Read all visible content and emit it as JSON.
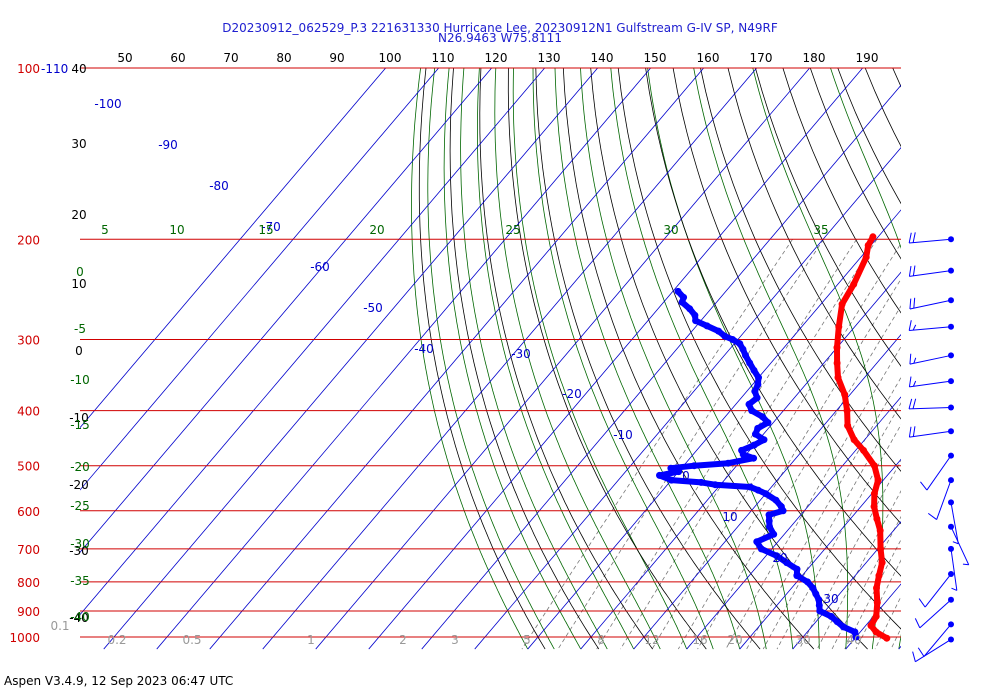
{
  "header": {
    "line1": "D20230912_062529_P.3 221631330 Hurricane Lee, 20230912N1 Gulfstream G-IV SP, N49RF",
    "line2": "N26.9463 W75.8111"
  },
  "footer": {
    "text": "Aspen V3.4.9, 12 Sep 2023  06:47 UTC"
  },
  "colors": {
    "isobar": "#d00000",
    "isotherm": "#0000cc",
    "dry_adiabat": "#000000",
    "moist_adiabat": "#006600",
    "mixing_ratio": "#777777",
    "temperature": "#ff0000",
    "dewpoint": "#0000ff"
  },
  "chart_data": {
    "type": "skew-t log-p",
    "pressure_axis": {
      "ticks": [
        {
          "p": 100,
          "label": "100",
          "extra": "-110"
        },
        {
          "p": 200,
          "label": "200"
        },
        {
          "p": 300,
          "label": "300"
        },
        {
          "p": 400,
          "label": "400"
        },
        {
          "p": 500,
          "label": "500"
        },
        {
          "p": 600,
          "label": "600"
        },
        {
          "p": 700,
          "label": "700"
        },
        {
          "p": 800,
          "label": "800"
        },
        {
          "p": 900,
          "label": "900"
        },
        {
          "p": 1000,
          "label": "1000"
        }
      ]
    },
    "top_scale": [
      "50",
      "60",
      "70",
      "80",
      "90",
      "100",
      "110",
      "120",
      "130",
      "140",
      "150",
      "160",
      "170",
      "180",
      "190"
    ],
    "altitude_labels": [
      "40",
      "30",
      "20",
      "10",
      "0",
      "-10",
      "-20",
      "-30",
      "-40"
    ],
    "isotherm_labels": [
      "-100",
      "-90",
      "-80",
      "-70",
      "-60",
      "-50",
      "-40",
      "-30",
      "-20",
      "-10",
      "0",
      "10",
      "20",
      "30"
    ],
    "theta_e_labels": [
      "5",
      "10",
      "15",
      "20",
      "25",
      "30",
      "35"
    ],
    "moist_left_labels": [
      "0",
      "-5",
      "-10",
      "-15",
      "-20",
      "-25",
      "-30",
      "-35",
      "-40"
    ],
    "mixing_ratio_labels": [
      "0.1",
      "0.2",
      "0.5",
      "1",
      "2",
      "3",
      "5",
      "8",
      "12",
      "16",
      "20",
      "30",
      "40"
    ],
    "temperature_profile": [
      [
        198,
        -41
      ],
      [
        205,
        -40.5
      ],
      [
        215,
        -39
      ],
      [
        240,
        -37
      ],
      [
        260,
        -36
      ],
      [
        285,
        -33
      ],
      [
        310,
        -30
      ],
      [
        330,
        -27.5
      ],
      [
        350,
        -25
      ],
      [
        375,
        -21
      ],
      [
        400,
        -18
      ],
      [
        425,
        -15.5
      ],
      [
        450,
        -12
      ],
      [
        470,
        -8.5
      ],
      [
        500,
        -4
      ],
      [
        530,
        -1
      ],
      [
        560,
        0.5
      ],
      [
        590,
        2.5
      ],
      [
        620,
        5
      ],
      [
        650,
        7.5
      ],
      [
        700,
        10.5
      ],
      [
        740,
        13
      ],
      [
        780,
        14.5
      ],
      [
        820,
        16
      ],
      [
        870,
        18.5
      ],
      [
        920,
        20.5
      ],
      [
        955,
        21
      ],
      [
        980,
        23
      ],
      [
        1005,
        26
      ]
    ],
    "dewpoint_profile": [
      [
        247,
        -69
      ],
      [
        253,
        -67
      ],
      [
        258,
        -66.5
      ],
      [
        265,
        -64
      ],
      [
        272,
        -62
      ],
      [
        278,
        -61
      ],
      [
        284,
        -58
      ],
      [
        290,
        -55
      ],
      [
        296,
        -53
      ],
      [
        300,
        -51
      ],
      [
        305,
        -49
      ],
      [
        312,
        -47.5
      ],
      [
        320,
        -46
      ],
      [
        330,
        -44
      ],
      [
        340,
        -42
      ],
      [
        350,
        -40
      ],
      [
        360,
        -39
      ],
      [
        370,
        -38.5
      ],
      [
        380,
        -37
      ],
      [
        390,
        -37.5
      ],
      [
        400,
        -36
      ],
      [
        410,
        -33
      ],
      [
        420,
        -31
      ],
      [
        430,
        -32
      ],
      [
        440,
        -31.5
      ],
      [
        450,
        -29
      ],
      [
        460,
        -30
      ],
      [
        470,
        -31.5
      ],
      [
        478,
        -30.5
      ],
      [
        485,
        -28
      ],
      [
        495,
        -32
      ],
      [
        500,
        -38
      ],
      [
        505,
        -42
      ],
      [
        512,
        -40
      ],
      [
        520,
        -43
      ],
      [
        530,
        -40
      ],
      [
        535,
        -34
      ],
      [
        540,
        -31
      ],
      [
        545,
        -24
      ],
      [
        552,
        -22
      ],
      [
        560,
        -20
      ],
      [
        575,
        -17
      ],
      [
        590,
        -15
      ],
      [
        600,
        -14
      ],
      [
        610,
        -16
      ],
      [
        625,
        -15
      ],
      [
        640,
        -14
      ],
      [
        660,
        -12
      ],
      [
        680,
        -14
      ],
      [
        700,
        -12
      ],
      [
        720,
        -8
      ],
      [
        740,
        -5
      ],
      [
        760,
        -2
      ],
      [
        780,
        -1
      ],
      [
        800,
        2
      ],
      [
        820,
        4
      ],
      [
        840,
        5.5
      ],
      [
        860,
        7
      ],
      [
        880,
        8
      ],
      [
        900,
        9
      ],
      [
        920,
        12
      ],
      [
        940,
        14
      ],
      [
        960,
        16
      ],
      [
        980,
        19
      ],
      [
        1000,
        20
      ]
    ],
    "wind_barbs": [
      {
        "p": 200,
        "dir": 265,
        "kt": 20
      },
      {
        "p": 227,
        "dir": 262,
        "kt": 20
      },
      {
        "p": 256,
        "dir": 258,
        "kt": 20
      },
      {
        "p": 285,
        "dir": 265,
        "kt": 15
      },
      {
        "p": 320,
        "dir": 258,
        "kt": 15
      },
      {
        "p": 355,
        "dir": 262,
        "kt": 15
      },
      {
        "p": 395,
        "dir": 268,
        "kt": 20
      },
      {
        "p": 435,
        "dir": 262,
        "kt": 20
      },
      {
        "p": 480,
        "dir": 215,
        "kt": 10
      },
      {
        "p": 530,
        "dir": 200,
        "kt": 10
      },
      {
        "p": 580,
        "dir": 170,
        "kt": 5
      },
      {
        "p": 640,
        "dir": 155,
        "kt": 5
      },
      {
        "p": 700,
        "dir": 172,
        "kt": 5
      },
      {
        "p": 775,
        "dir": 218,
        "kt": 10
      },
      {
        "p": 860,
        "dir": 228,
        "kt": 10
      },
      {
        "p": 950,
        "dir": 220,
        "kt": 10
      },
      {
        "p": 1010,
        "dir": 238,
        "kt": 10
      }
    ]
  }
}
